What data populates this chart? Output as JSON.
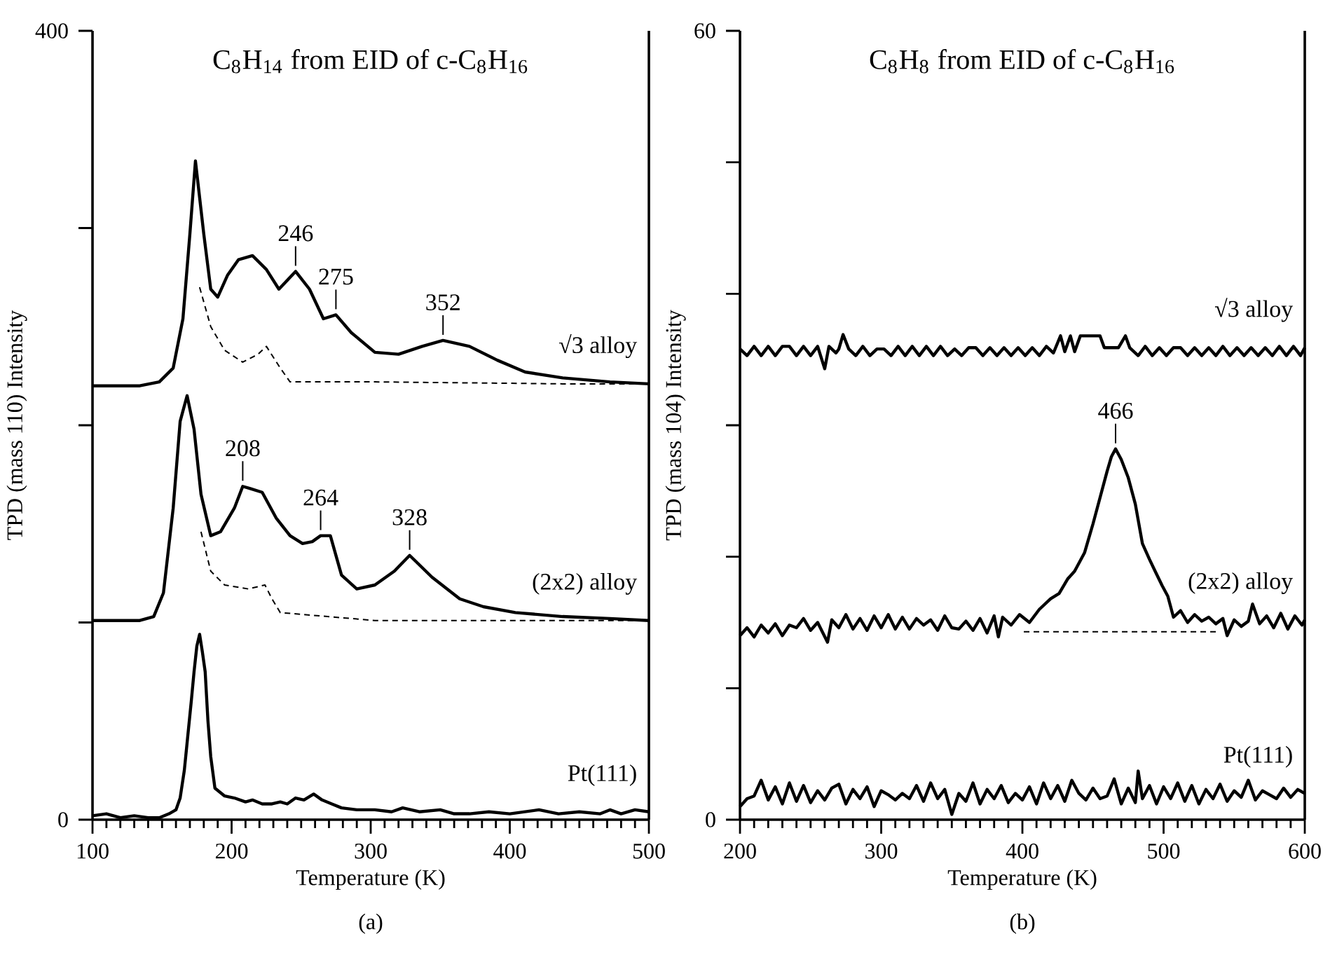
{
  "chart_data": [
    {
      "type": "line",
      "title": "C$_{8}$H$_{14}$ from EID of c-C$_{8}$H$_{16}$",
      "xlabel": "Temperature (K)",
      "ylabel": "TPD (mass 110) Intensity",
      "xlim": [
        100,
        500
      ],
      "xticks": [
        100,
        200,
        300,
        400,
        500
      ],
      "ylim": [
        0,
        400
      ],
      "yticks": [
        0,
        {
          "value": 100,
          "label": null
        },
        {
          "value": 200,
          "label": null
        },
        {
          "value": 300,
          "label": null
        },
        400
      ],
      "series": [
        {
          "name": "√3 alloy",
          "color": "#000000",
          "x": [
            100,
            120,
            134,
            148,
            158,
            165,
            170,
            174,
            180,
            185,
            190,
            197,
            205,
            215,
            225,
            234,
            246,
            256,
            266,
            275,
            286,
            303,
            320,
            337,
            352,
            371,
            391,
            411,
            438,
            472,
            500
          ],
          "values": [
            220,
            220,
            220,
            222,
            229,
            254,
            297,
            334,
            297,
            269,
            265,
            276,
            284,
            286,
            279,
            269,
            278,
            269,
            254,
            256,
            247,
            237,
            236,
            240,
            243,
            240,
            233,
            227,
            224,
            222,
            221
          ]
        },
        {
          "color": "#000000",
          "line_style": "dashed",
          "x": [
            177,
            185,
            195,
            208,
            219,
            225,
            235,
            242,
            303,
            438,
            500
          ],
          "values": [
            270,
            250,
            238,
            232,
            236,
            240,
            229,
            222,
            222,
            221,
            221
          ]
        },
        {
          "name": "(2x2) alloy",
          "color": "#000000",
          "x": [
            100,
            120,
            134,
            144,
            151,
            158,
            163,
            168,
            173,
            178,
            185,
            192,
            202,
            208,
            213,
            222,
            232,
            242,
            251,
            258,
            264,
            271,
            279,
            290,
            303,
            317,
            328,
            344,
            364,
            381,
            404,
            438,
            472,
            500
          ],
          "values": [
            101,
            101,
            101,
            103,
            115,
            158,
            202,
            215,
            198,
            165,
            144,
            146,
            158,
            169,
            168,
            166,
            153,
            144,
            140,
            141,
            144,
            144,
            124,
            117,
            119,
            126,
            134,
            123,
            112,
            108,
            105,
            103,
            102,
            101
          ]
        },
        {
          "color": "#000000",
          "line_style": "dashed",
          "x": [
            178,
            185,
            195,
            212,
            224,
            229,
            235,
            303,
            500
          ],
          "values": [
            146,
            126,
            119,
            117,
            119,
            112,
            105,
            101,
            101
          ]
        },
        {
          "name": "Pt(111)",
          "color": "#000000",
          "x": [
            100,
            110,
            120,
            130,
            140,
            148,
            155,
            160,
            163,
            166,
            168,
            171,
            173,
            175,
            177,
            179,
            181,
            183,
            185,
            188,
            195,
            202,
            210,
            215,
            222,
            229,
            235,
            240,
            246,
            252,
            259,
            265,
            272,
            279,
            290,
            303,
            315,
            323,
            335,
            350,
            360,
            371,
            385,
            400,
            421,
            435,
            450,
            465,
            472,
            480,
            490,
            500
          ],
          "values": [
            2,
            3,
            1,
            2,
            1,
            1,
            3,
            5,
            11,
            25,
            39,
            60,
            75,
            88,
            94,
            85,
            75,
            50,
            32,
            16,
            12,
            11,
            9,
            10,
            8,
            8,
            9,
            8,
            11,
            10,
            13,
            10,
            8,
            6,
            5,
            5,
            4,
            6,
            4,
            5,
            3,
            3,
            4,
            3,
            5,
            3,
            4,
            3,
            5,
            3,
            5,
            4
          ]
        }
      ],
      "annotations": [
        {
          "text": "208",
          "x": 208,
          "y": 169
        },
        {
          "text": "246",
          "x": 246,
          "y": 278
        },
        {
          "text": "275",
          "x": 275,
          "y": 256
        },
        {
          "text": "352",
          "x": 352,
          "y": 243
        },
        {
          "text": "264",
          "x": 264,
          "y": 144
        },
        {
          "text": "328",
          "x": 328,
          "y": 134
        },
        "(a)"
      ]
    },
    {
      "type": "line",
      "title": "C$_{8}$H$_{8}$ from EID of c-C$_{8}$H$_{16}$",
      "xlabel": "Temperature (K)",
      "ylabel": "TPD (mass 104) Intensity",
      "xlim": [
        200,
        600
      ],
      "xticks": [
        200,
        300,
        400,
        500,
        600
      ],
      "ylim": [
        0,
        60
      ],
      "yticks": [
        0,
        {
          "value": 10,
          "label": null
        },
        {
          "value": 20,
          "label": null
        },
        {
          "value": 30,
          "label": null
        },
        {
          "value": 40,
          "label": null
        },
        {
          "value": 50,
          "label": null
        },
        60
      ],
      "series": [
        {
          "name": "√3 alloy",
          "color": "#000000",
          "x": [
            200,
            205,
            210,
            215,
            220,
            225,
            230,
            235,
            240,
            245,
            250,
            255,
            260,
            263,
            268,
            270,
            273,
            277,
            282,
            287,
            292,
            297,
            302,
            307,
            312,
            317,
            322,
            327,
            332,
            337,
            342,
            347,
            352,
            357,
            362,
            367,
            372,
            377,
            382,
            387,
            392,
            397,
            402,
            407,
            412,
            417,
            422,
            427,
            430,
            434,
            437,
            441,
            446,
            455,
            458,
            468,
            473,
            476,
            482,
            487,
            492,
            497,
            502,
            507,
            512,
            517,
            522,
            527,
            532,
            537,
            542,
            547,
            552,
            557,
            562,
            567,
            572,
            577,
            582,
            587,
            592,
            597,
            600
          ],
          "values": [
            35.8,
            35.3,
            36.0,
            35.3,
            36.0,
            35.3,
            36.0,
            36.0,
            35.3,
            36.0,
            35.3,
            36.0,
            34.3,
            36.0,
            35.5,
            35.8,
            36.9,
            35.8,
            35.3,
            36.0,
            35.3,
            35.8,
            35.8,
            35.3,
            36.0,
            35.3,
            36.0,
            35.3,
            36.0,
            35.3,
            36.0,
            35.3,
            35.8,
            35.3,
            35.9,
            35.9,
            35.3,
            35.9,
            35.3,
            35.9,
            35.3,
            35.9,
            35.3,
            35.9,
            35.3,
            36.0,
            35.5,
            36.8,
            35.6,
            36.8,
            35.6,
            36.8,
            36.8,
            36.8,
            35.9,
            35.9,
            36.8,
            35.9,
            35.3,
            36.0,
            35.3,
            35.9,
            35.3,
            35.9,
            35.9,
            35.3,
            35.9,
            35.3,
            35.9,
            35.3,
            36.0,
            35.3,
            35.9,
            35.3,
            35.9,
            35.3,
            35.9,
            35.3,
            36.0,
            35.3,
            36.0,
            35.3,
            35.9
          ]
        },
        {
          "name": "(2x2) alloy",
          "color": "#000000",
          "x": [
            200,
            205,
            210,
            215,
            220,
            225,
            230,
            235,
            240,
            245,
            250,
            255,
            262,
            265,
            270,
            275,
            280,
            285,
            290,
            295,
            300,
            305,
            310,
            315,
            320,
            325,
            330,
            335,
            340,
            345,
            350,
            355,
            360,
            365,
            370,
            375,
            380,
            383,
            386,
            392,
            398,
            405,
            412,
            420,
            426,
            432,
            437,
            444,
            450,
            455,
            460,
            463,
            466,
            470,
            475,
            480,
            485,
            490,
            494,
            499,
            503,
            507,
            512,
            517,
            522,
            527,
            532,
            537,
            542,
            545,
            550,
            555,
            560,
            563,
            568,
            573,
            578,
            583,
            588,
            593,
            598,
            600
          ],
          "values": [
            14.0,
            14.6,
            13.9,
            14.8,
            14.2,
            14.9,
            14.0,
            14.8,
            14.6,
            15.3,
            14.4,
            15.0,
            13.5,
            15.2,
            14.6,
            15.6,
            14.5,
            15.3,
            14.4,
            15.5,
            14.6,
            15.6,
            14.5,
            15.4,
            14.5,
            15.3,
            14.8,
            15.2,
            14.4,
            15.5,
            14.6,
            14.5,
            15.1,
            14.4,
            15.3,
            14.2,
            15.5,
            13.9,
            15.4,
            14.8,
            15.6,
            15.0,
            16.0,
            16.8,
            17.2,
            18.3,
            18.9,
            20.3,
            22.5,
            24.5,
            26.5,
            27.6,
            28.2,
            27.4,
            26.0,
            24.0,
            21.0,
            19.8,
            18.9,
            17.8,
            17.0,
            15.4,
            15.9,
            15.0,
            15.6,
            15.1,
            15.4,
            14.9,
            15.3,
            14.0,
            15.2,
            14.7,
            15.1,
            16.4,
            14.9,
            15.5,
            14.6,
            15.7,
            14.5,
            15.5,
            14.8,
            15.2
          ]
        },
        {
          "color": "#000000",
          "line_style": "dashed",
          "x": [
            401,
            539
          ],
          "values": [
            14.3,
            14.3
          ]
        },
        {
          "name": "Pt(111)",
          "color": "#000000",
          "x": [
            200,
            205,
            210,
            215,
            220,
            225,
            230,
            235,
            240,
            245,
            250,
            255,
            260,
            265,
            270,
            275,
            280,
            285,
            290,
            295,
            300,
            305,
            310,
            315,
            320,
            325,
            330,
            335,
            340,
            345,
            350,
            355,
            360,
            365,
            370,
            375,
            380,
            385,
            390,
            395,
            400,
            405,
            410,
            415,
            420,
            425,
            430,
            435,
            440,
            445,
            450,
            455,
            460,
            465,
            470,
            475,
            480,
            482,
            485,
            490,
            495,
            500,
            505,
            510,
            515,
            520,
            525,
            530,
            535,
            540,
            545,
            550,
            555,
            560,
            565,
            570,
            575,
            580,
            585,
            590,
            595,
            600
          ],
          "values": [
            1.0,
            1.6,
            1.8,
            3.0,
            1.5,
            2.5,
            1.2,
            2.8,
            1.4,
            2.6,
            1.3,
            2.2,
            1.5,
            2.4,
            2.7,
            1.2,
            2.3,
            1.6,
            2.5,
            1.0,
            2.2,
            1.9,
            1.5,
            2.0,
            1.6,
            2.6,
            1.4,
            2.8,
            1.6,
            2.3,
            0.4,
            2.0,
            1.4,
            2.8,
            1.2,
            2.3,
            1.6,
            2.6,
            1.3,
            2.0,
            1.5,
            2.5,
            1.2,
            2.8,
            1.6,
            2.6,
            1.4,
            3.0,
            2.0,
            1.5,
            2.4,
            1.6,
            1.8,
            3.1,
            1.2,
            2.4,
            1.3,
            3.7,
            1.6,
            2.6,
            1.2,
            2.5,
            1.6,
            2.8,
            1.4,
            2.6,
            1.2,
            2.3,
            1.6,
            2.7,
            1.4,
            2.2,
            1.7,
            3.0,
            1.5,
            2.2,
            1.9,
            1.6,
            2.4,
            1.7,
            2.3,
            2.0
          ]
        }
      ],
      "annotations": [
        {
          "text": "466",
          "x": 466,
          "y": 28.2
        },
        "(b)"
      ]
    }
  ]
}
